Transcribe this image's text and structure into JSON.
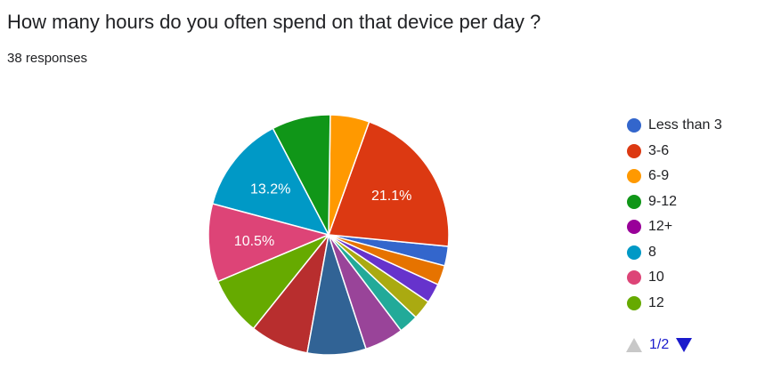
{
  "header": {
    "title": "How many hours do you often spend on that device per day ?",
    "responses": "38 responses"
  },
  "pager": {
    "text": "1/2",
    "prev_icon": "triangle-up-icon",
    "next_icon": "triangle-down-icon"
  },
  "legend": [
    {
      "label": "Less than 3",
      "color": "#3366cc"
    },
    {
      "label": "3-6",
      "color": "#dc3912"
    },
    {
      "label": "6-9",
      "color": "#ff9900"
    },
    {
      "label": "9-12",
      "color": "#109618"
    },
    {
      "label": "12+",
      "color": "#990099"
    },
    {
      "label": "8",
      "color": "#0099c6"
    },
    {
      "label": "10",
      "color": "#dd4477"
    },
    {
      "label": "12",
      "color": "#66aa00"
    }
  ],
  "chart_data": {
    "type": "pie",
    "title": "How many hours do you often spend on that device per day ?",
    "total_responses": 38,
    "slices": [
      {
        "label": "Less than 3",
        "count": 1,
        "percent": 2.6,
        "color": "#3366cc",
        "shown_label": ""
      },
      {
        "label": "3-6",
        "count": 8,
        "percent": 21.1,
        "color": "#dc3912",
        "shown_label": "21.1%"
      },
      {
        "label": "6-9",
        "count": 2,
        "percent": 5.3,
        "color": "#ff9900",
        "shown_label": ""
      },
      {
        "label": "9-12",
        "count": 3,
        "percent": 7.9,
        "color": "#109618",
        "shown_label": ""
      },
      {
        "label": "8",
        "count": 5,
        "percent": 13.2,
        "color": "#0099c6",
        "shown_label": "13.2%"
      },
      {
        "label": "10",
        "count": 4,
        "percent": 10.5,
        "color": "#dd4477",
        "shown_label": "10.5%"
      },
      {
        "label": "12",
        "count": 3,
        "percent": 7.9,
        "color": "#66aa00",
        "shown_label": ""
      },
      {
        "label": "",
        "count": 3,
        "percent": 7.9,
        "color": "#b82e2e",
        "shown_label": ""
      },
      {
        "label": "",
        "count": 3,
        "percent": 7.9,
        "color": "#316395",
        "shown_label": ""
      },
      {
        "label": "",
        "count": 2,
        "percent": 5.3,
        "color": "#994499",
        "shown_label": ""
      },
      {
        "label": "",
        "count": 1,
        "percent": 2.6,
        "color": "#22aa99",
        "shown_label": ""
      },
      {
        "label": "",
        "count": 1,
        "percent": 2.6,
        "color": "#aaaa11",
        "shown_label": ""
      },
      {
        "label": "",
        "count": 1,
        "percent": 2.6,
        "color": "#6633cc",
        "shown_label": ""
      },
      {
        "label": "",
        "count": 1,
        "percent": 2.6,
        "color": "#e67300",
        "shown_label": ""
      }
    ],
    "legend_position": "right"
  }
}
